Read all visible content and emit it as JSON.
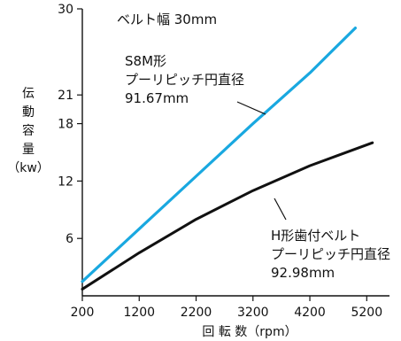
{
  "chart_data": {
    "type": "line",
    "title": "",
    "subtitle": "ベルト幅 30mm",
    "xlabel": "回 転 数（rpm）",
    "ylabel": "伝動容量（kw）",
    "ylabel_parts": [
      "伝",
      "動",
      "容",
      "量",
      "（kw）"
    ],
    "xlim": [
      200,
      5600
    ],
    "ylim": [
      0,
      30
    ],
    "x_ticks": [
      200,
      1200,
      2200,
      3200,
      4200,
      5200
    ],
    "x_tick_labels": [
      "200",
      "1200",
      "2200",
      "3200",
      "4200",
      "5200"
    ],
    "y_ticks": [
      6,
      12,
      18,
      21,
      30
    ],
    "y_tick_labels": [
      "6",
      "12",
      "18",
      "21",
      "30"
    ],
    "grid": false,
    "legend": "none",
    "series": [
      {
        "label_lines": [
          "S8M形",
          "プーリピッチ円直径",
          "91.67mm"
        ],
        "color": "#19a8e0",
        "x": [
          200,
          1200,
          2200,
          3200,
          4200,
          5000
        ],
        "y": [
          1.5,
          7.0,
          12.5,
          18.0,
          23.3,
          28.0
        ]
      },
      {
        "label_lines": [
          "H形歯付ベルト",
          "プーリピッチ円直径",
          "92.98mm"
        ],
        "color": "#111111",
        "x": [
          200,
          1200,
          2200,
          3200,
          4200,
          5300
        ],
        "y": [
          0.7,
          4.5,
          8.0,
          11.0,
          13.6,
          16.0
        ]
      }
    ]
  }
}
